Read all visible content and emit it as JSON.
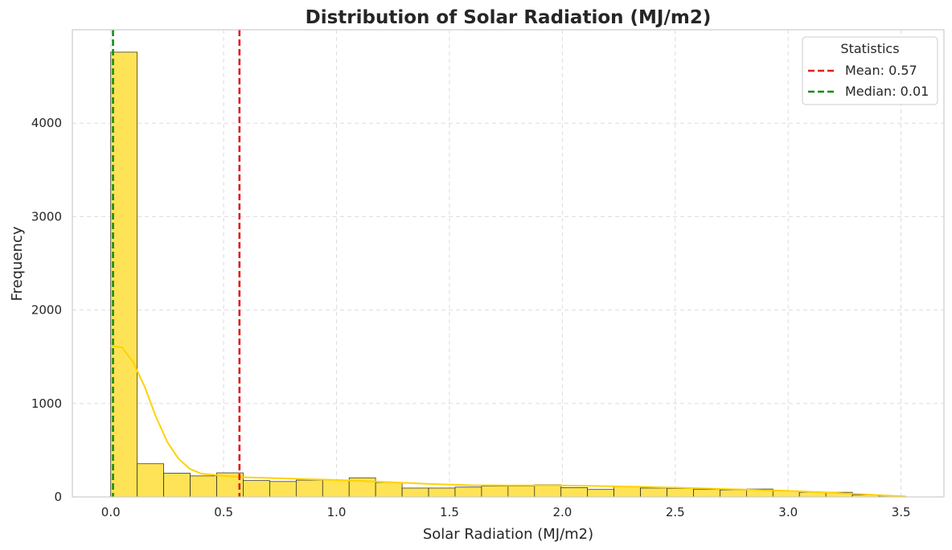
{
  "chart_data": {
    "type": "bar",
    "subtype": "histogram",
    "title": "Distribution of Solar Radiation (MJ/m2)",
    "xlabel": "Solar Radiation (MJ/m2)",
    "ylabel": "Frequency",
    "xlim": [
      -0.17,
      3.69
    ],
    "ylim": [
      0,
      5000
    ],
    "xticks": [
      0.0,
      0.5,
      1.0,
      1.5,
      2.0,
      2.5,
      3.0,
      3.5
    ],
    "xtick_labels": [
      "0.0",
      "0.5",
      "1.0",
      "1.5",
      "2.0",
      "2.5",
      "3.0",
      "3.5"
    ],
    "yticks": [
      0,
      1000,
      2000,
      3000,
      4000
    ],
    "ytick_labels": [
      "0",
      "1000",
      "2000",
      "3000",
      "4000"
    ],
    "grid": true,
    "bin_edges": [
      0.0,
      0.1173,
      0.2346,
      0.3519,
      0.4692,
      0.5865,
      0.7038,
      0.8211,
      0.9384,
      1.0557,
      1.173,
      1.2903,
      1.4076,
      1.5249,
      1.6422,
      1.7595,
      1.8768,
      1.9941,
      2.1114,
      2.2287,
      2.346,
      2.4633,
      2.5806,
      2.6979,
      2.8152,
      2.9325,
      3.0498,
      3.1671,
      3.2844,
      3.4017,
      3.519
    ],
    "counts": [
      4760,
      355,
      255,
      225,
      258,
      175,
      165,
      180,
      180,
      205,
      155,
      95,
      95,
      105,
      115,
      115,
      130,
      100,
      80,
      110,
      95,
      90,
      80,
      75,
      85,
      65,
      50,
      50,
      20,
      10
    ],
    "kde": {
      "x": [
        0.0,
        0.05,
        0.1,
        0.15,
        0.2,
        0.25,
        0.3,
        0.35,
        0.4,
        0.5,
        0.6,
        0.8,
        1.0,
        1.2,
        1.4,
        1.6,
        1.8,
        2.0,
        2.2,
        2.4,
        2.6,
        2.8,
        3.0,
        3.2,
        3.4,
        3.52
      ],
      "y": [
        1620,
        1600,
        1440,
        1180,
        860,
        590,
        410,
        300,
        250,
        225,
        210,
        195,
        182,
        162,
        140,
        125,
        122,
        122,
        115,
        105,
        92,
        80,
        65,
        45,
        20,
        5
      ]
    },
    "series": [
      {
        "name": "Mean: 0.57",
        "value": 0.57,
        "color": "#e41a1c",
        "style": "dashed"
      },
      {
        "name": "Median: 0.01",
        "value": 0.01,
        "color": "#168a16",
        "style": "dashed"
      }
    ],
    "legend": {
      "title": "Statistics",
      "position": "top-right"
    },
    "colors": {
      "bar_fill": "#ffe24d",
      "bar_edge": "#222222",
      "kde_line": "#ffd200",
      "grid": "#dcdcdc",
      "spine": "#cccccc"
    }
  }
}
